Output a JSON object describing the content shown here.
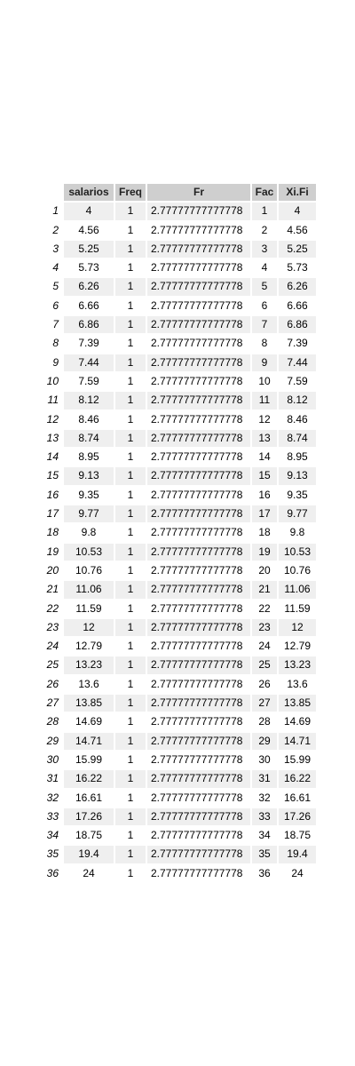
{
  "table": {
    "columns": [
      "salarios",
      "Freq",
      "Fr",
      "Fac",
      "Xi.Fi"
    ],
    "rows": [
      {
        "idx": "1",
        "salarios": "4",
        "Freq": "1",
        "Fr": "2.77777777777778",
        "Fac": "1",
        "XiFi": "4"
      },
      {
        "idx": "2",
        "salarios": "4.56",
        "Freq": "1",
        "Fr": "2.77777777777778",
        "Fac": "2",
        "XiFi": "4.56"
      },
      {
        "idx": "3",
        "salarios": "5.25",
        "Freq": "1",
        "Fr": "2.77777777777778",
        "Fac": "3",
        "XiFi": "5.25"
      },
      {
        "idx": "4",
        "salarios": "5.73",
        "Freq": "1",
        "Fr": "2.77777777777778",
        "Fac": "4",
        "XiFi": "5.73"
      },
      {
        "idx": "5",
        "salarios": "6.26",
        "Freq": "1",
        "Fr": "2.77777777777778",
        "Fac": "5",
        "XiFi": "6.26"
      },
      {
        "idx": "6",
        "salarios": "6.66",
        "Freq": "1",
        "Fr": "2.77777777777778",
        "Fac": "6",
        "XiFi": "6.66"
      },
      {
        "idx": "7",
        "salarios": "6.86",
        "Freq": "1",
        "Fr": "2.77777777777778",
        "Fac": "7",
        "XiFi": "6.86"
      },
      {
        "idx": "8",
        "salarios": "7.39",
        "Freq": "1",
        "Fr": "2.77777777777778",
        "Fac": "8",
        "XiFi": "7.39"
      },
      {
        "idx": "9",
        "salarios": "7.44",
        "Freq": "1",
        "Fr": "2.77777777777778",
        "Fac": "9",
        "XiFi": "7.44"
      },
      {
        "idx": "10",
        "salarios": "7.59",
        "Freq": "1",
        "Fr": "2.77777777777778",
        "Fac": "10",
        "XiFi": "7.59"
      },
      {
        "idx": "11",
        "salarios": "8.12",
        "Freq": "1",
        "Fr": "2.77777777777778",
        "Fac": "11",
        "XiFi": "8.12"
      },
      {
        "idx": "12",
        "salarios": "8.46",
        "Freq": "1",
        "Fr": "2.77777777777778",
        "Fac": "12",
        "XiFi": "8.46"
      },
      {
        "idx": "13",
        "salarios": "8.74",
        "Freq": "1",
        "Fr": "2.77777777777778",
        "Fac": "13",
        "XiFi": "8.74"
      },
      {
        "idx": "14",
        "salarios": "8.95",
        "Freq": "1",
        "Fr": "2.77777777777778",
        "Fac": "14",
        "XiFi": "8.95"
      },
      {
        "idx": "15",
        "salarios": "9.13",
        "Freq": "1",
        "Fr": "2.77777777777778",
        "Fac": "15",
        "XiFi": "9.13"
      },
      {
        "idx": "16",
        "salarios": "9.35",
        "Freq": "1",
        "Fr": "2.77777777777778",
        "Fac": "16",
        "XiFi": "9.35"
      },
      {
        "idx": "17",
        "salarios": "9.77",
        "Freq": "1",
        "Fr": "2.77777777777778",
        "Fac": "17",
        "XiFi": "9.77"
      },
      {
        "idx": "18",
        "salarios": "9.8",
        "Freq": "1",
        "Fr": "2.77777777777778",
        "Fac": "18",
        "XiFi": "9.8"
      },
      {
        "idx": "19",
        "salarios": "10.53",
        "Freq": "1",
        "Fr": "2.77777777777778",
        "Fac": "19",
        "XiFi": "10.53"
      },
      {
        "idx": "20",
        "salarios": "10.76",
        "Freq": "1",
        "Fr": "2.77777777777778",
        "Fac": "20",
        "XiFi": "10.76"
      },
      {
        "idx": "21",
        "salarios": "11.06",
        "Freq": "1",
        "Fr": "2.77777777777778",
        "Fac": "21",
        "XiFi": "11.06"
      },
      {
        "idx": "22",
        "salarios": "11.59",
        "Freq": "1",
        "Fr": "2.77777777777778",
        "Fac": "22",
        "XiFi": "11.59"
      },
      {
        "idx": "23",
        "salarios": "12",
        "Freq": "1",
        "Fr": "2.77777777777778",
        "Fac": "23",
        "XiFi": "12"
      },
      {
        "idx": "24",
        "salarios": "12.79",
        "Freq": "1",
        "Fr": "2.77777777777778",
        "Fac": "24",
        "XiFi": "12.79"
      },
      {
        "idx": "25",
        "salarios": "13.23",
        "Freq": "1",
        "Fr": "2.77777777777778",
        "Fac": "25",
        "XiFi": "13.23"
      },
      {
        "idx": "26",
        "salarios": "13.6",
        "Freq": "1",
        "Fr": "2.77777777777778",
        "Fac": "26",
        "XiFi": "13.6"
      },
      {
        "idx": "27",
        "salarios": "13.85",
        "Freq": "1",
        "Fr": "2.77777777777778",
        "Fac": "27",
        "XiFi": "13.85"
      },
      {
        "idx": "28",
        "salarios": "14.69",
        "Freq": "1",
        "Fr": "2.77777777777778",
        "Fac": "28",
        "XiFi": "14.69"
      },
      {
        "idx": "29",
        "salarios": "14.71",
        "Freq": "1",
        "Fr": "2.77777777777778",
        "Fac": "29",
        "XiFi": "14.71"
      },
      {
        "idx": "30",
        "salarios": "15.99",
        "Freq": "1",
        "Fr": "2.77777777777778",
        "Fac": "30",
        "XiFi": "15.99"
      },
      {
        "idx": "31",
        "salarios": "16.22",
        "Freq": "1",
        "Fr": "2.77777777777778",
        "Fac": "31",
        "XiFi": "16.22"
      },
      {
        "idx": "32",
        "salarios": "16.61",
        "Freq": "1",
        "Fr": "2.77777777777778",
        "Fac": "32",
        "XiFi": "16.61"
      },
      {
        "idx": "33",
        "salarios": "17.26",
        "Freq": "1",
        "Fr": "2.77777777777778",
        "Fac": "33",
        "XiFi": "17.26"
      },
      {
        "idx": "34",
        "salarios": "18.75",
        "Freq": "1",
        "Fr": "2.77777777777778",
        "Fac": "34",
        "XiFi": "18.75"
      },
      {
        "idx": "35",
        "salarios": "19.4",
        "Freq": "1",
        "Fr": "2.77777777777778",
        "Fac": "35",
        "XiFi": "19.4"
      },
      {
        "idx": "36",
        "salarios": "24",
        "Freq": "1",
        "Fr": "2.77777777777778",
        "Fac": "36",
        "XiFi": "24"
      }
    ]
  },
  "colors": {
    "header_bg": "#cfcfcf",
    "row_even_bg": "#efefef",
    "row_odd_bg": "#ffffff"
  }
}
